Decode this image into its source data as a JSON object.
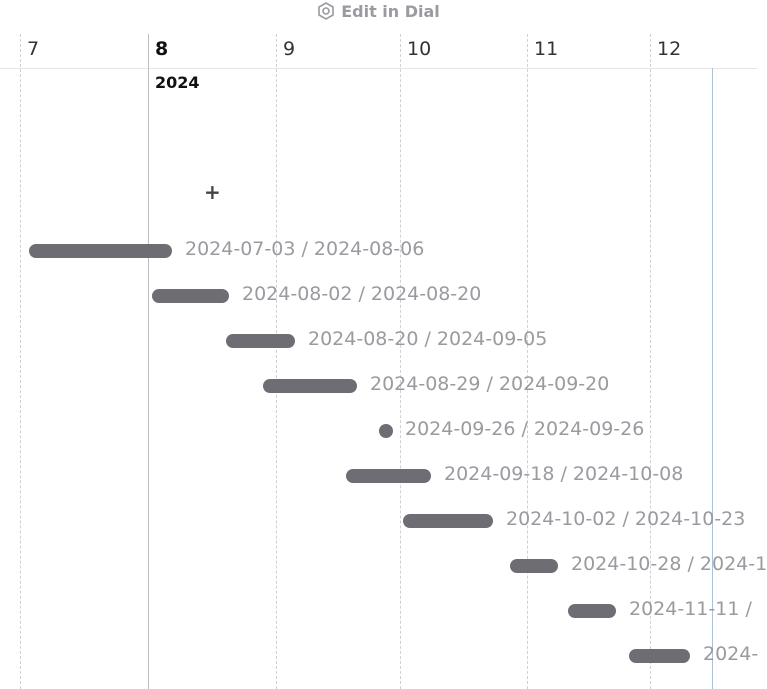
{
  "toolbar": {
    "button": "Edit in Dial"
  },
  "header": {
    "months": [
      "7",
      "8",
      "9",
      "10",
      "11",
      "12"
    ],
    "year": "2024"
  },
  "add_button": "+",
  "tasks": [
    {
      "label": "2024-07-03 / 2024-08-06"
    },
    {
      "label": "2024-08-02 / 2024-08-20"
    },
    {
      "label": "2024-08-20 / 2024-09-05"
    },
    {
      "label": "2024-08-29 / 2024-09-20"
    },
    {
      "label": "2024-09-26 / 2024-09-26"
    },
    {
      "label": "2024-09-18 / 2024-10-08"
    },
    {
      "label": "2024-10-02 / 2024-10-23"
    },
    {
      "label": "2024-10-28 / 2024-1"
    },
    {
      "label": "2024-11-11 /"
    },
    {
      "label": "2024-"
    }
  ]
}
